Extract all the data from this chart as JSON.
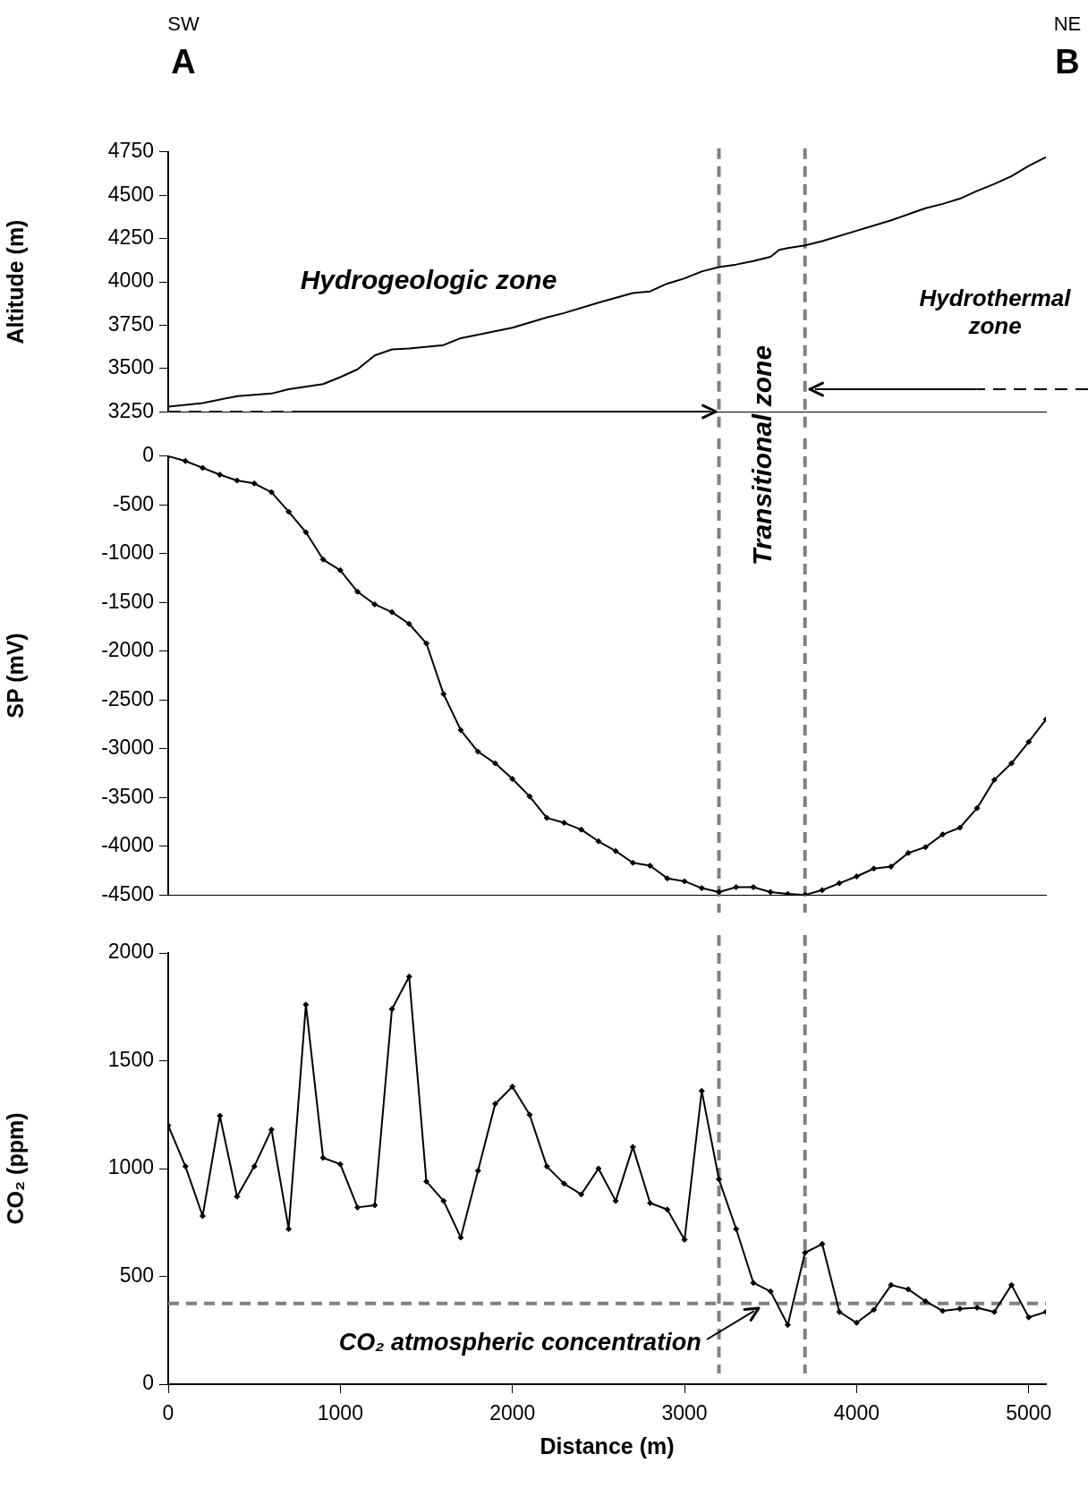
{
  "chart_data": [
    {
      "type": "line",
      "ylabel": "Altitude (m)",
      "xlim": [
        0,
        5100
      ],
      "ylim": [
        3250,
        4750
      ],
      "yticks": [
        3250,
        3500,
        3750,
        4000,
        4250,
        4500,
        4750
      ],
      "tick_labels": "y",
      "grid": false,
      "marker": "none",
      "line_style": "solid",
      "x": [
        0,
        200,
        400,
        600,
        700,
        900,
        1000,
        1100,
        1200,
        1300,
        1400,
        1600,
        1700,
        2000,
        2200,
        2300,
        2500,
        2700,
        2800,
        2900,
        3000,
        3100,
        3200,
        3300,
        3400,
        3500,
        3550,
        3600,
        3700,
        3800,
        4000,
        4200,
        4400,
        4500,
        4600,
        4700,
        4800,
        4900,
        5000,
        5100
      ],
      "series": [
        {
          "color": "#000000",
          "values": [
            3280,
            3300,
            3340,
            3355,
            3380,
            3410,
            3450,
            3495,
            3575,
            3610,
            3615,
            3635,
            3675,
            3735,
            3795,
            3820,
            3880,
            3935,
            3945,
            3990,
            4020,
            4060,
            4085,
            4100,
            4120,
            4145,
            4185,
            4195,
            4210,
            4235,
            4295,
            4355,
            4425,
            4450,
            4480,
            4525,
            4565,
            4610,
            4670,
            4720
          ]
        }
      ],
      "ref_lines": [
        {
          "axis": "x",
          "value": 3200,
          "color": "#808080",
          "line_style": "dashed"
        },
        {
          "axis": "x",
          "value": 3700,
          "color": "#808080",
          "line_style": "dashed"
        }
      ],
      "annotations": [
        "SW",
        "A",
        "NE",
        "B",
        "Hydrogeologic zone",
        "Transitional zone",
        "Hydrothermal zone"
      ]
    },
    {
      "type": "line",
      "ylabel": "SP (mV)",
      "xlim": [
        0,
        5100
      ],
      "ylim": [
        -4500,
        0
      ],
      "yticks": [
        -4500,
        -4000,
        -3500,
        -3000,
        -2500,
        -2000,
        -1500,
        -1000,
        -500,
        0
      ],
      "tick_labels": "y",
      "grid": false,
      "marker": "diamond",
      "line_style": "solid",
      "x": [
        0,
        100,
        200,
        300,
        400,
        500,
        600,
        700,
        800,
        900,
        1000,
        1100,
        1200,
        1300,
        1400,
        1500,
        1600,
        1700,
        1800,
        1900,
        2000,
        2100,
        2200,
        2300,
        2400,
        2500,
        2600,
        2700,
        2800,
        2900,
        3000,
        3100,
        3200,
        3300,
        3400,
        3500,
        3600,
        3700,
        3800,
        3900,
        4000,
        4100,
        4200,
        4300,
        4400,
        4500,
        4600,
        4700,
        4800,
        4900,
        5000,
        5100
      ],
      "series": [
        {
          "color": "#000000",
          "values": [
            0,
            -50,
            -120,
            -190,
            -250,
            -280,
            -370,
            -570,
            -780,
            -1060,
            -1170,
            -1390,
            -1520,
            -1600,
            -1720,
            -1920,
            -2440,
            -2810,
            -3030,
            -3150,
            -3310,
            -3490,
            -3710,
            -3760,
            -3830,
            -3950,
            -4050,
            -4170,
            -4200,
            -4330,
            -4360,
            -4430,
            -4470,
            -4420,
            -4420,
            -4470,
            -4490,
            -4500,
            -4450,
            -4380,
            -4310,
            -4230,
            -4210,
            -4070,
            -4010,
            -3880,
            -3810,
            -3610,
            -3320,
            -3150,
            -2930,
            -2700
          ]
        }
      ],
      "ref_lines": [
        {
          "axis": "x",
          "value": 3200,
          "color": "#808080",
          "line_style": "dashed"
        },
        {
          "axis": "x",
          "value": 3700,
          "color": "#808080",
          "line_style": "dashed"
        }
      ]
    },
    {
      "type": "line",
      "xlabel": "Distance (m)",
      "ylabel": "CO₂ (ppm)",
      "xlim": [
        0,
        5100
      ],
      "xticks": [
        0,
        1000,
        2000,
        3000,
        4000,
        5000
      ],
      "ylim": [
        0,
        2000
      ],
      "yticks": [
        0,
        500,
        1000,
        1500,
        2000
      ],
      "grid": false,
      "marker": "diamond",
      "line_style": "solid",
      "x": [
        0,
        100,
        200,
        300,
        400,
        500,
        600,
        700,
        800,
        900,
        1000,
        1100,
        1200,
        1300,
        1400,
        1500,
        1600,
        1700,
        1800,
        1900,
        2000,
        2100,
        2200,
        2300,
        2400,
        2500,
        2600,
        2700,
        2800,
        2900,
        3000,
        3100,
        3200,
        3300,
        3400,
        3500,
        3600,
        3700,
        3800,
        3900,
        4000,
        4100,
        4200,
        4300,
        4400,
        4500,
        4600,
        4700,
        4800,
        4900,
        5000,
        5100
      ],
      "series": [
        {
          "color": "#000000",
          "values": [
            1200,
            1010,
            780,
            1245,
            870,
            1010,
            1180,
            720,
            1760,
            1050,
            1020,
            820,
            830,
            1740,
            1890,
            940,
            850,
            680,
            990,
            1300,
            1380,
            1250,
            1010,
            930,
            880,
            1000,
            850,
            1100,
            840,
            810,
            670,
            1360,
            950,
            720,
            470,
            430,
            275,
            610,
            650,
            335,
            285,
            345,
            460,
            440,
            385,
            340,
            350,
            355,
            335,
            460,
            310,
            335
          ]
        }
      ],
      "ref_lines": [
        {
          "axis": "x",
          "value": 3200,
          "color": "#808080",
          "line_style": "dashed"
        },
        {
          "axis": "x",
          "value": 3700,
          "color": "#808080",
          "line_style": "dashed"
        },
        {
          "axis": "y",
          "value": 375,
          "color": "#808080",
          "line_style": "dashed"
        }
      ],
      "annotations": [
        {
          "text": "CO₂ atmospheric concentration",
          "x": 3450,
          "y": 375
        }
      ]
    }
  ]
}
